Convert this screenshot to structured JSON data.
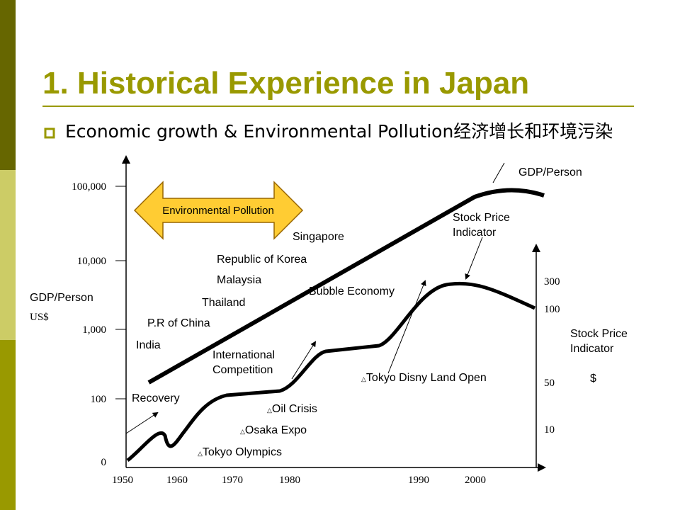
{
  "header": {
    "title": "1. Historical Experience in Japan"
  },
  "bullet": {
    "text": "Economic growth & Environmental Pollution经济增长和环境污染"
  },
  "diagram": {
    "y_axis_label": "GDP/Person",
    "y_axis_unit": "US$",
    "y_ticks": [
      "100,000",
      "10,000",
      "1,000",
      "100",
      "0"
    ],
    "x_ticks": [
      "1950",
      "1960",
      "1970",
      "1980",
      "1990",
      "2000"
    ],
    "y2_ticks": [
      "300",
      "100",
      "50",
      "10"
    ],
    "y2_axis_label": "Stock Price Indicator",
    "y2_axis_unit": "$",
    "banner": "Environmental Pollution",
    "gdp_label": "GDP/Person",
    "stock_label": "Stock Price Indicator",
    "countries": [
      "Singapore",
      "Republic of Korea",
      "Malaysia",
      "Thailand",
      "P.R of China",
      "India"
    ],
    "phases": [
      "Bubble Economy",
      "International Competition",
      "Recovery"
    ],
    "events": [
      "Tokyo Disny Land Open",
      "Oil Crisis",
      "Osaka Expo",
      "Tokyo Olympics"
    ]
  }
}
